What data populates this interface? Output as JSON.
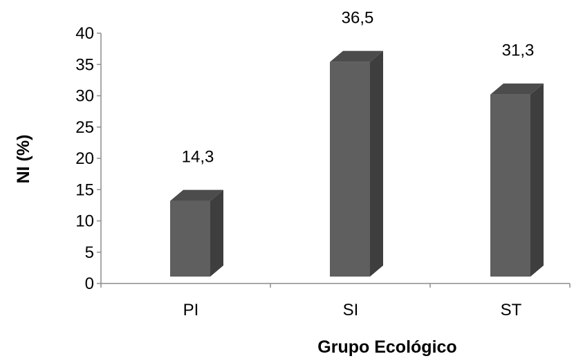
{
  "chart_data": {
    "type": "bar",
    "categories": [
      "PI",
      "SI",
      "ST"
    ],
    "values": [
      14.3,
      36.5,
      31.3
    ],
    "data_labels": [
      "14,3",
      "36,5",
      "31,3"
    ],
    "xlabel": "Grupo Ecológico",
    "ylabel": "NI (%)",
    "ylim": [
      0,
      40
    ],
    "yticks": [
      0,
      5,
      10,
      15,
      20,
      25,
      30,
      35,
      40
    ],
    "grid": false,
    "style": "3d-column",
    "colors": {
      "front": "#5f5f5f",
      "side": "#3e3e3e",
      "top": "#4c4c4c",
      "axis": "#8c8c8c"
    }
  }
}
